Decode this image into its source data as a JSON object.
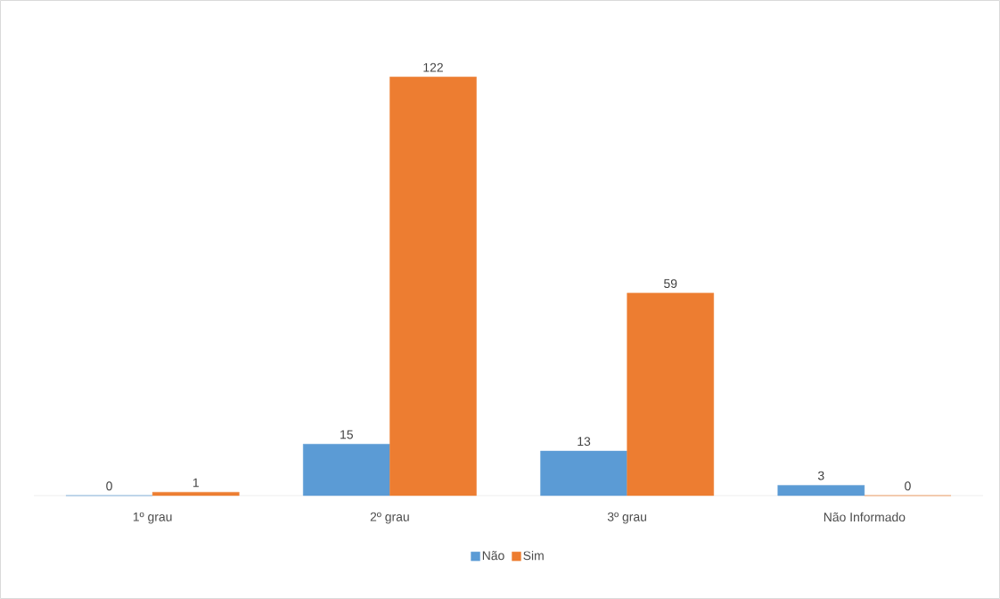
{
  "chart_data": {
    "type": "bar",
    "categories": [
      "1º grau",
      "2º grau",
      "3º grau",
      "Não Informado"
    ],
    "series": [
      {
        "name": "Não",
        "color": "#5b9bd5",
        "values": [
          0,
          15,
          13,
          3
        ]
      },
      {
        "name": "Sim",
        "color": "#ed7d31",
        "values": [
          1,
          122,
          59,
          0
        ]
      }
    ],
    "data_labels": true,
    "legend": "bottom"
  }
}
